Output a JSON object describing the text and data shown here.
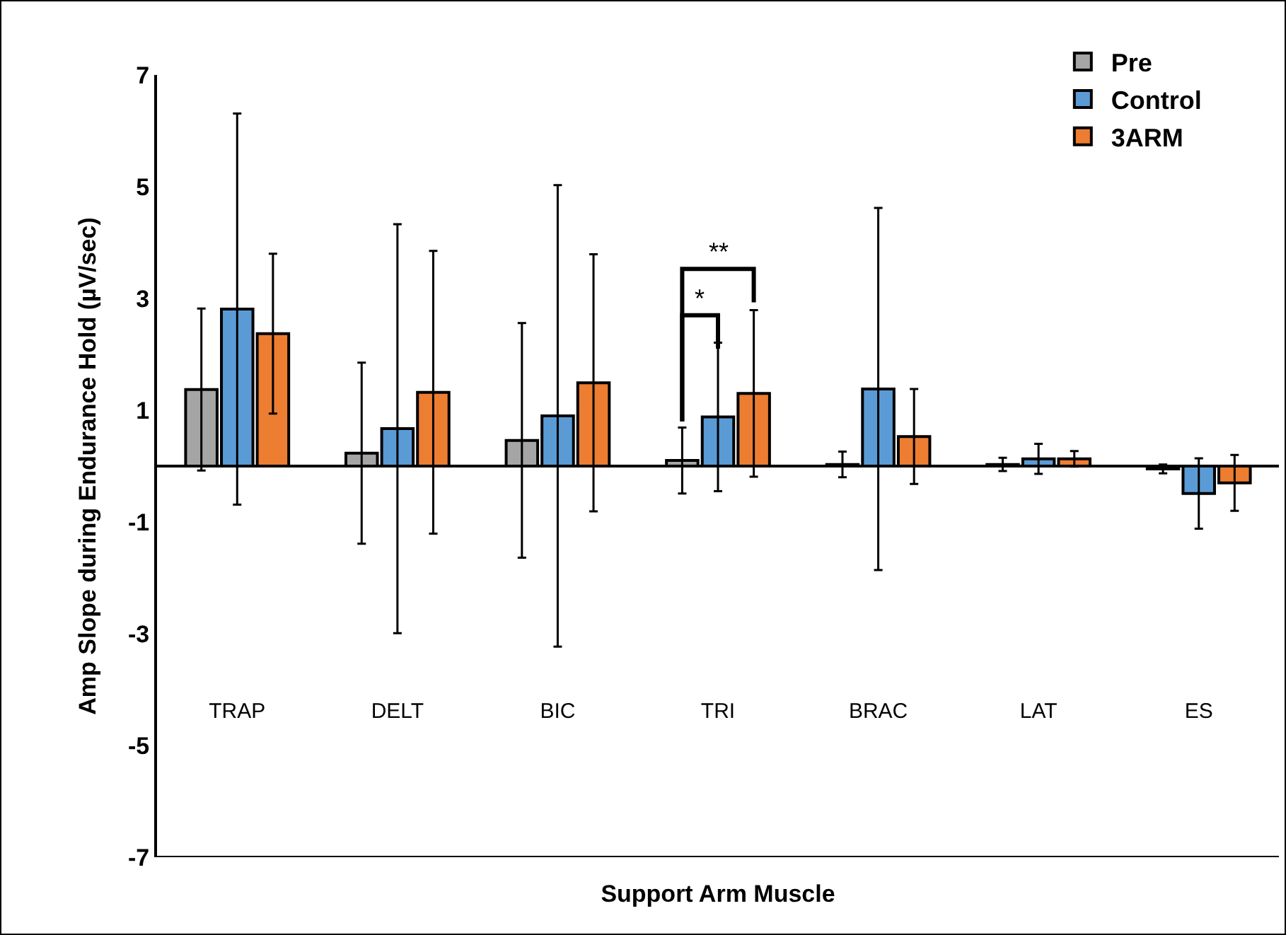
{
  "chart_data": {
    "type": "bar",
    "xlabel": "Support Arm Muscle",
    "ylabel": "Amp Slope during Endurance Hold (µV/sec)",
    "categories": [
      "TRAP",
      "DELT",
      "BIC",
      "TRI",
      "BRAC",
      "LAT",
      "ES"
    ],
    "series": [
      {
        "name": "Pre",
        "color": "#a5a5a5",
        "values": [
          1.37,
          0.23,
          0.46,
          0.1,
          0.03,
          0.03,
          -0.05
        ],
        "errors": [
          1.45,
          1.62,
          2.1,
          0.59,
          0.23,
          0.12,
          0.08
        ]
      },
      {
        "name": "Control",
        "color": "#5b9bd5",
        "values": [
          2.81,
          0.67,
          0.9,
          0.88,
          1.38,
          0.13,
          -0.49
        ],
        "errors": [
          3.5,
          3.66,
          4.13,
          1.33,
          3.24,
          0.27,
          0.63
        ]
      },
      {
        "name": "3ARM",
        "color": "#ed7d31",
        "values": [
          2.37,
          1.32,
          1.49,
          1.3,
          0.53,
          0.13,
          -0.3
        ],
        "errors": [
          1.43,
          2.53,
          2.3,
          1.49,
          0.85,
          0.14,
          0.5
        ]
      }
    ],
    "ylim": [
      -7,
      7
    ],
    "yticks": [
      -7,
      -5,
      -3,
      -1,
      1,
      3,
      5,
      7
    ],
    "grid": false,
    "legend": "top right",
    "annotations": [
      "*",
      "**"
    ]
  }
}
